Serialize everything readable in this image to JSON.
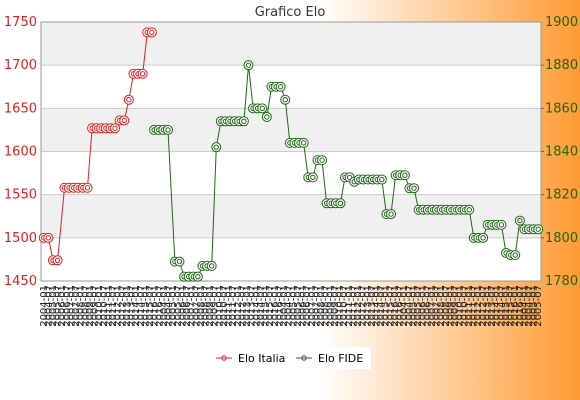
{
  "chart_data": {
    "type": "line",
    "title": "Grafico Elo",
    "background": {
      "gradient_from": "#ffffff",
      "gradient_to": "#ff9a33",
      "plot_band_color": "#f0f0f0"
    },
    "grid": true,
    "legend_position": "bottom",
    "x_tick_label_samples": [
      "2004-01",
      "2004-07",
      "2005-01",
      "2005-07",
      "2006-01",
      "2006-07",
      "2007-01",
      "2007-07",
      "2008-01",
      "2008-07",
      "2009-01",
      "2009-07",
      "2010-01",
      "2010-07",
      "2011-01",
      "2011-07",
      "2012-01",
      "2012-07",
      "2013-01",
      "2013-07",
      "2014-01",
      "2014-07",
      "2015-01",
      "2015-07",
      "2016-01",
      "2016-07"
    ],
    "y_left": {
      "ylim": [
        1450,
        1750
      ],
      "ticks": [
        1450,
        1500,
        1550,
        1600,
        1650,
        1700,
        1750
      ],
      "color": "#e0201c"
    },
    "y_right": {
      "ylim": [
        1780,
        1900
      ],
      "ticks": [
        1780,
        1800,
        1820,
        1840,
        1860,
        1880,
        1900
      ],
      "color": "#1c6a12"
    },
    "series": [
      {
        "name": "Elo Italia",
        "axis": "left",
        "color": "#e0201c",
        "x": [
          0.0,
          1.0,
          2.0,
          3.0,
          4.5,
          5.5,
          6.5,
          7.5,
          8.5,
          9.5,
          10.5,
          11.5,
          12.5,
          13.5,
          14.5,
          15.5,
          16.5,
          17.5,
          18.5,
          19.5,
          20.5,
          21.5,
          22.5,
          23.5
        ],
        "values": [
          1500,
          1500,
          1474,
          1474,
          1558,
          1558,
          1558,
          1558,
          1558,
          1558,
          1627,
          1627,
          1627,
          1627,
          1627,
          1627,
          1636,
          1636,
          1660,
          1690,
          1690,
          1690,
          1738,
          1738
        ]
      },
      {
        "name": "Elo FIDE",
        "axis": "right",
        "color": "#1c6a12",
        "x": [
          24.0,
          25.0,
          26.0,
          27.0,
          28.5,
          29.5,
          30.5,
          31.5,
          32.5,
          33.5,
          34.5,
          35.5,
          36.5,
          37.5,
          38.5,
          39.5,
          40.5,
          41.5,
          42.5,
          43.5,
          44.5,
          45.5,
          46.5,
          47.5,
          48.5,
          49.5,
          50.5,
          51.5,
          52.5,
          53.5,
          54.5,
          55.5,
          56.5,
          57.5,
          58.5,
          59.5,
          60.5,
          61.5,
          62.5,
          63.5,
          64.5,
          65.5,
          66.5,
          67.5,
          68.5,
          69.5,
          70.5,
          71.5,
          72.5,
          73.5,
          74.5,
          75.5,
          76.5,
          77.5,
          78.5,
          79.5,
          80.5,
          81.5,
          82.5,
          83.5,
          84.5,
          85.5,
          86.5,
          87.5,
          88.5,
          89.5,
          90.5,
          91.5,
          92.5,
          93.5,
          94.5,
          95.5,
          96.5,
          97.5,
          98.5,
          99.5,
          100.5,
          101.5,
          102.5,
          103.5,
          104.5,
          105.5,
          106.5,
          107.5
        ],
        "values": [
          1850,
          1850,
          1850,
          1850,
          1789,
          1789,
          1782,
          1782,
          1782,
          1782,
          1787,
          1787,
          1787,
          1842,
          1854,
          1854,
          1854,
          1854,
          1854,
          1854,
          1880,
          1860,
          1860,
          1860,
          1856,
          1870,
          1870,
          1870,
          1864,
          1844,
          1844,
          1844,
          1844,
          1828,
          1828,
          1836,
          1836,
          1816,
          1816,
          1816,
          1816,
          1828,
          1828,
          1826,
          1827,
          1827,
          1827,
          1827,
          1827,
          1827,
          1811,
          1811,
          1829,
          1829,
          1829,
          1823,
          1823,
          1813,
          1813,
          1813,
          1813,
          1813,
          1813,
          1813,
          1813,
          1813,
          1813,
          1813,
          1813,
          1800,
          1800,
          1800,
          1806,
          1806,
          1806,
          1806,
          1793,
          1792,
          1792,
          1808,
          1804,
          1804,
          1804,
          1804
        ]
      }
    ]
  }
}
